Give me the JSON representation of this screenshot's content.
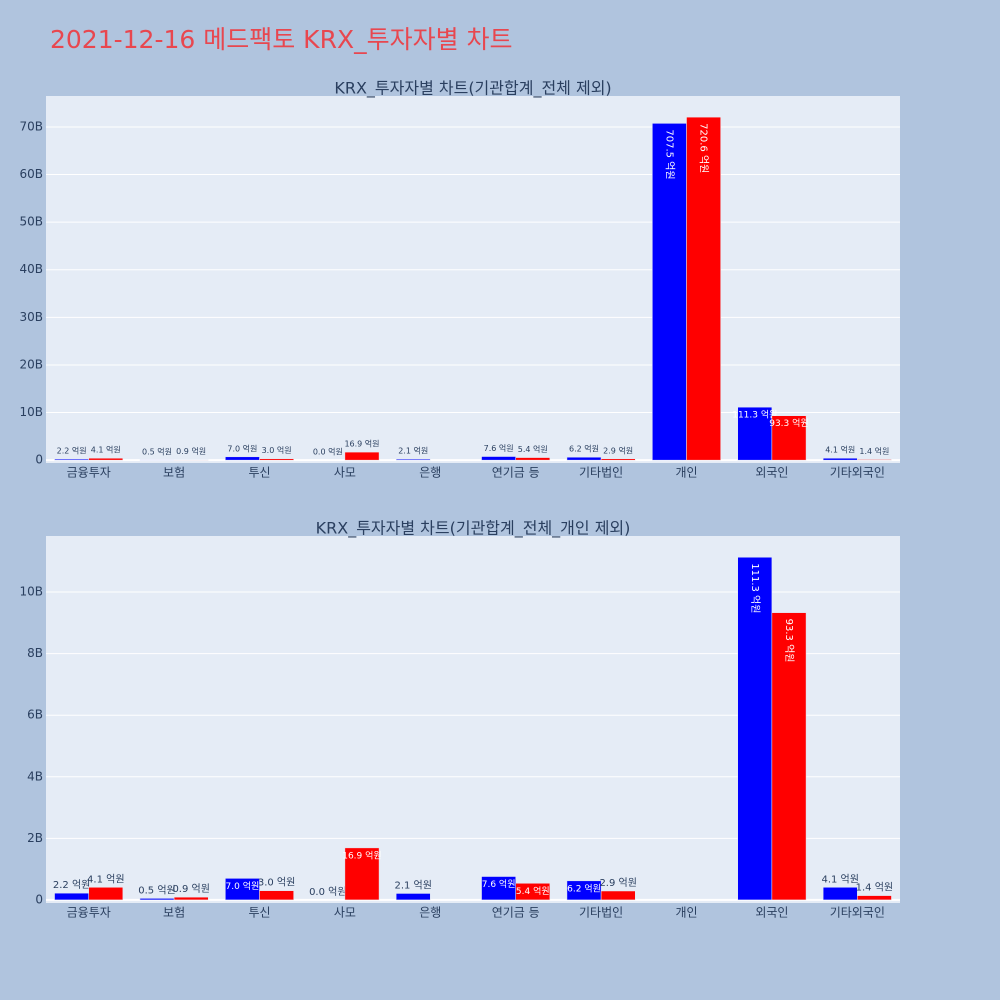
{
  "title": "2021-12-16 메드팩토 KRX_투자자별 차트",
  "chart_data": [
    {
      "type": "bar",
      "title": "KRX_투자자별 차트(기관합계_전체 제외)",
      "categories": [
        "금융투자",
        "보험",
        "투신",
        "사모",
        "은행",
        "연기금 등",
        "기타법인",
        "개인",
        "외국인",
        "기타외국인"
      ],
      "series": [
        {
          "color": "#0000ff",
          "values": [
            0.22,
            0.05,
            0.7,
            0.0,
            0.21,
            0.76,
            0.62,
            70.75,
            11.13,
            0.41
          ],
          "value_labels": [
            "2.2 억원",
            "0.5 억원",
            "7.0 억원",
            "0.0 억원",
            "2.1 억원",
            "7.6 억원",
            "6.2 억원",
            "707.5 억원",
            "111.3 억원",
            "4.1 억원"
          ]
        },
        {
          "color": "#ff0000",
          "values": [
            0.41,
            0.09,
            0.3,
            1.69,
            null,
            0.54,
            0.29,
            72.06,
            9.33,
            0.14
          ],
          "value_labels": [
            "4.1 억원",
            "0.9 억원",
            "3.0 억원",
            "16.9 억원",
            null,
            "5.4 억원",
            "2.9 억원",
            "720.6 억원",
            "93.3 억원",
            "1.4 억원"
          ]
        }
      ],
      "ylim": [
        -0.6,
        76.5
      ],
      "yticks": [
        0,
        {
          "value": 10,
          "label": "10B"
        },
        {
          "value": 20,
          "label": "20B"
        },
        {
          "value": 30,
          "label": "30B"
        },
        {
          "value": 40,
          "label": "40B"
        },
        {
          "value": 50,
          "label": "50B"
        },
        {
          "value": 60,
          "label": "60B"
        },
        {
          "value": 70,
          "label": "70B"
        }
      ],
      "grid": true
    },
    {
      "type": "bar",
      "title": "KRX_투자자별 차트(기관합계_전체_개인 제외)",
      "categories": [
        "금융투자",
        "보험",
        "투신",
        "사모",
        "은행",
        "연기금 등",
        "기타법인",
        "개인",
        "외국인",
        "기타외국인"
      ],
      "series": [
        {
          "color": "#0000ff",
          "values": [
            0.22,
            0.05,
            0.7,
            0.0,
            0.21,
            0.76,
            0.62,
            null,
            11.13,
            0.41
          ],
          "value_labels": [
            "2.2 억원",
            "0.5 억원",
            "7.0 억원",
            "0.0 억원",
            "2.1 억원",
            "7.6 억원",
            "6.2 억원",
            null,
            "111.3 억원",
            "4.1 억원"
          ]
        },
        {
          "color": "#ff0000",
          "values": [
            0.41,
            0.09,
            0.3,
            1.69,
            null,
            0.54,
            0.29,
            null,
            9.33,
            0.14
          ],
          "value_labels": [
            "4.1 억원",
            "0.9 억원",
            "3.0 억원",
            "16.9 억원",
            null,
            "5.4 억원",
            "2.9 억원",
            null,
            "93.3 억원",
            "1.4 억원"
          ]
        }
      ],
      "ylim": [
        -0.1,
        11.82
      ],
      "yticks": [
        0,
        {
          "value": 2,
          "label": "2B"
        },
        {
          "value": 4,
          "label": "4B"
        },
        {
          "value": 6,
          "label": "6B"
        },
        {
          "value": 8,
          "label": "8B"
        },
        {
          "value": 10,
          "label": "10B"
        }
      ],
      "grid": true
    }
  ]
}
